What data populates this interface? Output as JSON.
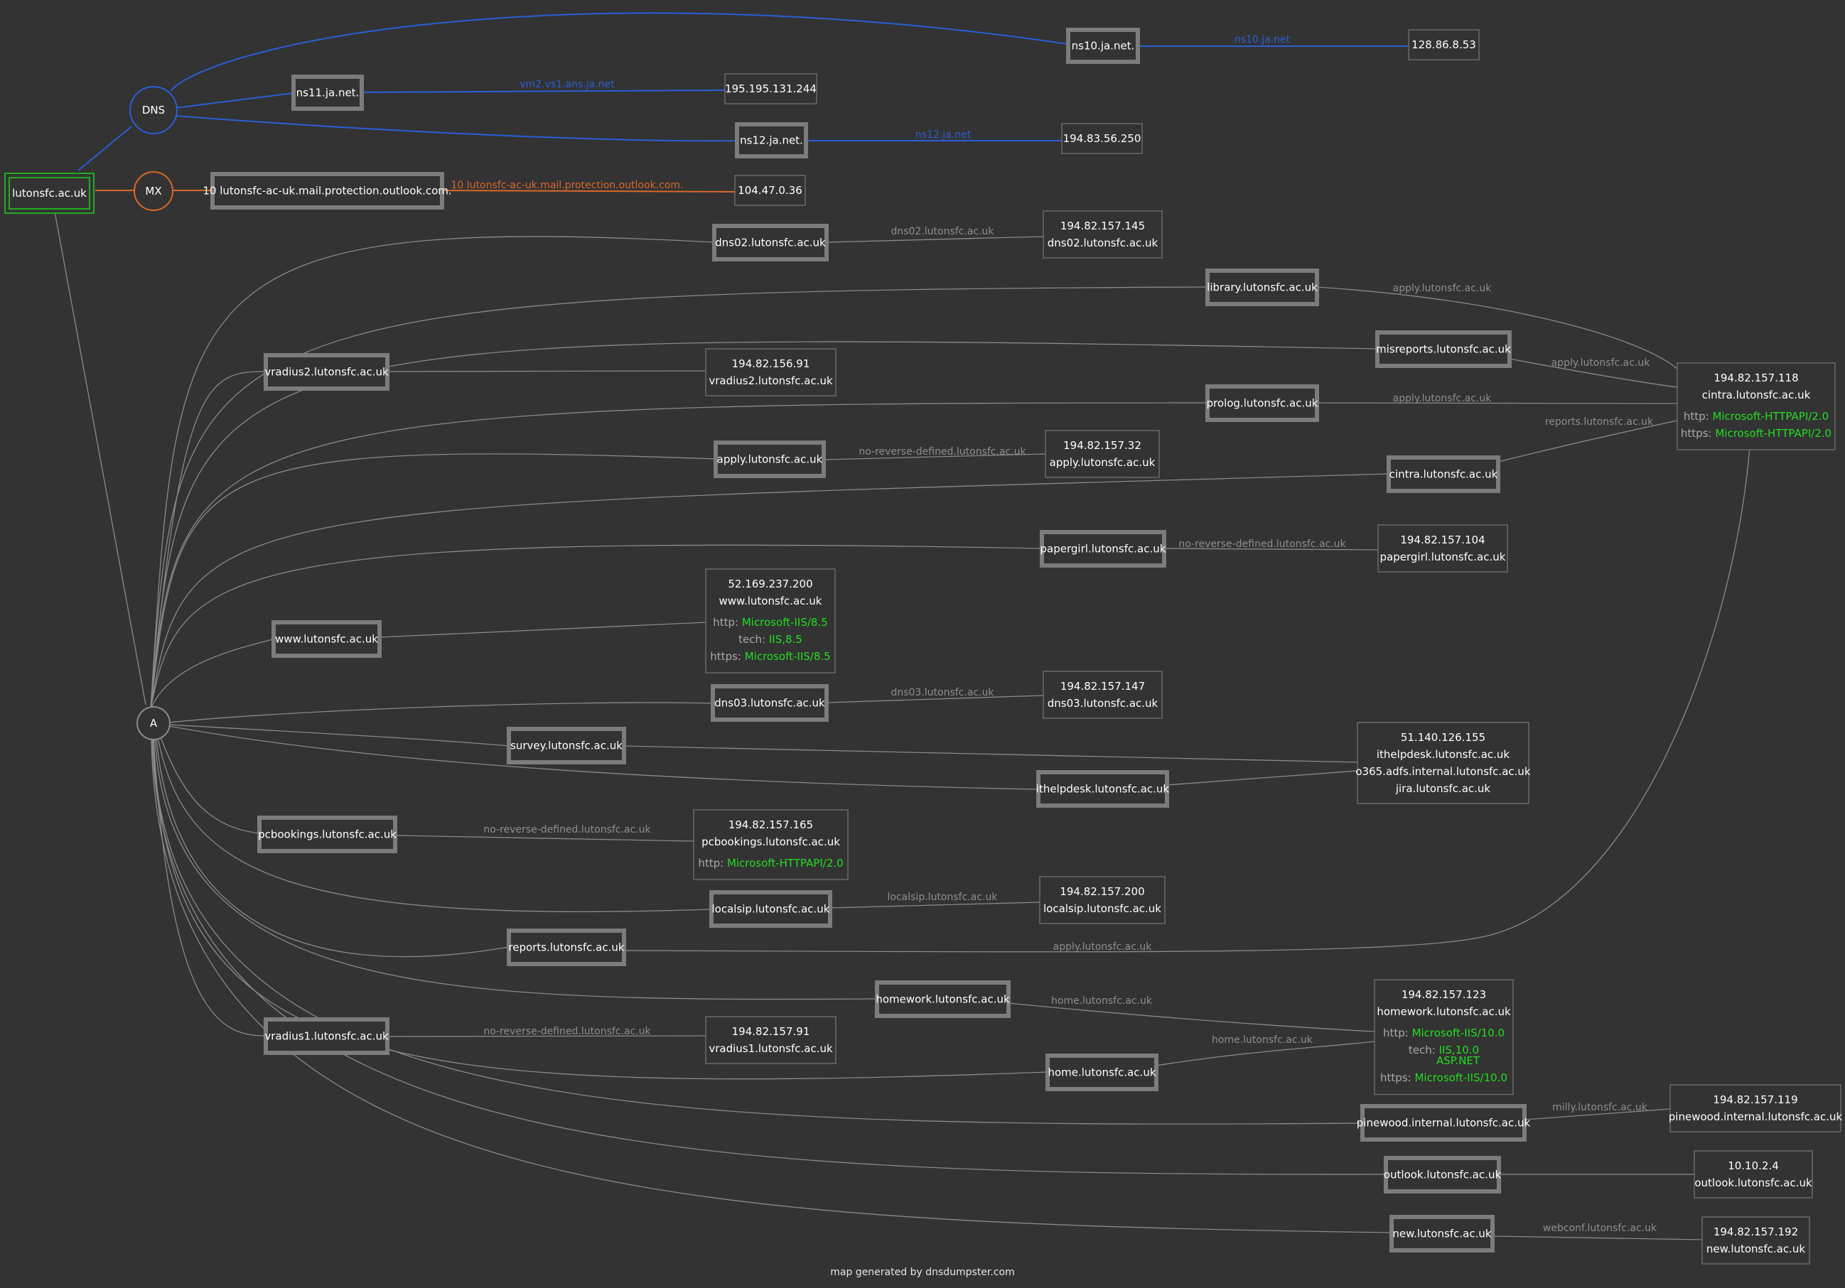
{
  "root": "lutonsfc.ac.uk",
  "hubs": {
    "dns": "DNS",
    "mx": "MX",
    "a": "A"
  },
  "footer": "map generated by dnsdumpster.com",
  "colors": {
    "background": "#333333",
    "dns_edge": "#2a5fd6",
    "mx_edge": "#d8692a",
    "root_border": "#22aa22",
    "server_text": "#22dd22"
  },
  "hosts": [
    {
      "id": "ns10",
      "label": "ns10.ja.net."
    },
    {
      "id": "ns11",
      "label": "ns11.ja.net."
    },
    {
      "id": "ns12",
      "label": "ns12.ja.net."
    },
    {
      "id": "mx10",
      "label": "10 lutonsfc-ac-uk.mail.protection.outlook.com."
    },
    {
      "id": "dns02",
      "label": "dns02.lutonsfc.ac.uk"
    },
    {
      "id": "library",
      "label": "library.lutonsfc.ac.uk"
    },
    {
      "id": "misreports",
      "label": "misreports.lutonsfc.ac.uk"
    },
    {
      "id": "vradius2",
      "label": "vradius2.lutonsfc.ac.uk"
    },
    {
      "id": "prolog",
      "label": "prolog.lutonsfc.ac.uk"
    },
    {
      "id": "apply",
      "label": "apply.lutonsfc.ac.uk"
    },
    {
      "id": "cintra",
      "label": "cintra.lutonsfc.ac.uk"
    },
    {
      "id": "papergirl",
      "label": "papergirl.lutonsfc.ac.uk"
    },
    {
      "id": "www",
      "label": "www.lutonsfc.ac.uk"
    },
    {
      "id": "dns03",
      "label": "dns03.lutonsfc.ac.uk"
    },
    {
      "id": "survey",
      "label": "survey.lutonsfc.ac.uk"
    },
    {
      "id": "ithelpdesk",
      "label": "ithelpdesk.lutonsfc.ac.uk"
    },
    {
      "id": "pcbookings",
      "label": "pcbookings.lutonsfc.ac.uk"
    },
    {
      "id": "localsip",
      "label": "localsip.lutonsfc.ac.uk"
    },
    {
      "id": "reports",
      "label": "reports.lutonsfc.ac.uk"
    },
    {
      "id": "homework",
      "label": "homework.lutonsfc.ac.uk"
    },
    {
      "id": "vradius1",
      "label": "vradius1.lutonsfc.ac.uk"
    },
    {
      "id": "home",
      "label": "home.lutonsfc.ac.uk"
    },
    {
      "id": "pinewood",
      "label": "pinewood.internal.lutonsfc.ac.uk"
    },
    {
      "id": "outlook",
      "label": "outlook.lutonsfc.ac.uk"
    },
    {
      "id": "new",
      "label": "new.lutonsfc.ac.uk"
    }
  ],
  "ips": [
    {
      "id": "ip_ns10",
      "lines": [
        "128.86.8.53"
      ]
    },
    {
      "id": "ip_ns11",
      "lines": [
        "195.195.131.244"
      ]
    },
    {
      "id": "ip_ns12",
      "lines": [
        "194.83.56.250"
      ]
    },
    {
      "id": "ip_mx",
      "lines": [
        "104.47.0.36"
      ]
    },
    {
      "id": "ip_dns02",
      "lines": [
        "194.82.157.145",
        "dns02.lutonsfc.ac.uk"
      ]
    },
    {
      "id": "ip_cintra",
      "lines": [
        "194.82.157.118",
        "cintra.lutonsfc.ac.uk"
      ],
      "services": [
        {
          "k": "http:",
          "v": "Microsoft-HTTPAPI/2.0"
        },
        {
          "k": "https:",
          "v": "Microsoft-HTTPAPI/2.0"
        }
      ]
    },
    {
      "id": "ip_vradius2",
      "lines": [
        "194.82.156.91",
        "vradius2.lutonsfc.ac.uk"
      ]
    },
    {
      "id": "ip_apply",
      "lines": [
        "194.82.157.32",
        "apply.lutonsfc.ac.uk"
      ]
    },
    {
      "id": "ip_papergirl",
      "lines": [
        "194.82.157.104",
        "papergirl.lutonsfc.ac.uk"
      ]
    },
    {
      "id": "ip_www",
      "lines": [
        "52.169.237.200",
        "www.lutonsfc.ac.uk"
      ],
      "services": [
        {
          "k": "http:",
          "v": "Microsoft-IIS/8.5"
        },
        {
          "k": "tech:",
          "v": "IIS,8.5"
        },
        {
          "k": "https:",
          "v": "Microsoft-IIS/8.5"
        }
      ]
    },
    {
      "id": "ip_dns03",
      "lines": [
        "194.82.157.147",
        "dns03.lutonsfc.ac.uk"
      ]
    },
    {
      "id": "ip_helpdesk",
      "lines": [
        "51.140.126.155",
        "ithelpdesk.lutonsfc.ac.uk",
        "o365.adfs.internal.lutonsfc.ac.uk",
        "jira.lutonsfc.ac.uk"
      ]
    },
    {
      "id": "ip_pcbookings",
      "lines": [
        "194.82.157.165",
        "pcbookings.lutonsfc.ac.uk"
      ],
      "services": [
        {
          "k": "http:",
          "v": "Microsoft-HTTPAPI/2.0"
        }
      ]
    },
    {
      "id": "ip_localsip",
      "lines": [
        "194.82.157.200",
        "localsip.lutonsfc.ac.uk"
      ]
    },
    {
      "id": "ip_vradius1",
      "lines": [
        "194.82.157.91",
        "vradius1.lutonsfc.ac.uk"
      ]
    },
    {
      "id": "ip_homework",
      "lines": [
        "194.82.157.123",
        "homework.lutonsfc.ac.uk"
      ],
      "services": [
        {
          "k": "http:",
          "v": "Microsoft-IIS/10.0"
        },
        {
          "k": "tech:",
          "v": "IIS,10.0",
          "v2": "ASP.NET"
        },
        {
          "k": "https:",
          "v": "Microsoft-IIS/10.0"
        }
      ]
    },
    {
      "id": "ip_pinewood",
      "lines": [
        "194.82.157.119",
        "pinewood.internal.lutonsfc.ac.uk"
      ]
    },
    {
      "id": "ip_outlook",
      "lines": [
        "10.10.2.4",
        "outlook.lutonsfc.ac.uk"
      ]
    },
    {
      "id": "ip_new",
      "lines": [
        "194.82.157.192",
        "new.lutonsfc.ac.uk"
      ]
    }
  ],
  "edge_labels": [
    {
      "id": "ns10",
      "text": "ns10.ja.net",
      "kind": "dns"
    },
    {
      "id": "ns11",
      "text": "vm2.vs1.ans.ja.net",
      "kind": "dns"
    },
    {
      "id": "ns12",
      "text": "ns12.ja.net",
      "kind": "dns"
    },
    {
      "id": "mx",
      "text": "10 lutonsfc-ac-uk.mail.protection.outlook.com.",
      "kind": "mx"
    },
    {
      "id": "dns02",
      "text": "dns02.lutonsfc.ac.uk"
    },
    {
      "id": "library",
      "text": "apply.lutonsfc.ac.uk"
    },
    {
      "id": "misreports",
      "text": "apply.lutonsfc.ac.uk"
    },
    {
      "id": "prolog",
      "text": "apply.lutonsfc.ac.uk"
    },
    {
      "id": "cintra",
      "text": "reports.lutonsfc.ac.uk"
    },
    {
      "id": "apply",
      "text": "no-reverse-defined.lutonsfc.ac.uk"
    },
    {
      "id": "papergirl",
      "text": "no-reverse-defined.lutonsfc.ac.uk"
    },
    {
      "id": "dns03",
      "text": "dns03.lutonsfc.ac.uk"
    },
    {
      "id": "pcbookings",
      "text": "no-reverse-defined.lutonsfc.ac.uk"
    },
    {
      "id": "localsip",
      "text": "localsip.lutonsfc.ac.uk"
    },
    {
      "id": "reports",
      "text": "apply.lutonsfc.ac.uk"
    },
    {
      "id": "homework",
      "text": "home.lutonsfc.ac.uk"
    },
    {
      "id": "home",
      "text": "home.lutonsfc.ac.uk"
    },
    {
      "id": "vradius1",
      "text": "no-reverse-defined.lutonsfc.ac.uk"
    },
    {
      "id": "pinewood",
      "text": "milly.lutonsfc.ac.uk"
    },
    {
      "id": "new",
      "text": "webconf.lutonsfc.ac.uk"
    }
  ]
}
